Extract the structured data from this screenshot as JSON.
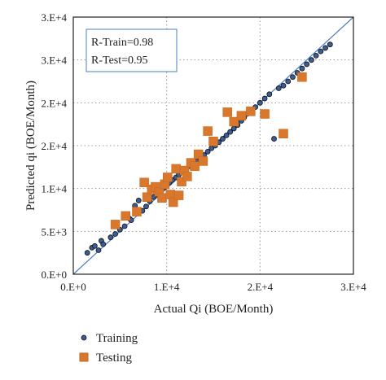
{
  "chart_data": {
    "type": "scatter",
    "xlabel": "Actual Qi (BOE/Month)",
    "ylabel": "Predicted qi (BOE/Month)",
    "xlim": [
      0,
      30000
    ],
    "ylim": [
      0,
      30000
    ],
    "x_ticks": [
      "0.E+0",
      "1.E+4",
      "2.E+4",
      "3.E+4"
    ],
    "y_ticks": [
      "0.E+0",
      "5.E+3",
      "1.E+4",
      "2.E+4",
      "2.E+4",
      "3.E+4",
      "3.E+4"
    ],
    "grid": "dotted",
    "legend_position": "bottom-left",
    "stats": [
      "R-Train=0.98",
      "R-Test=0.95"
    ],
    "fit_line": {
      "x": [
        0,
        30000
      ],
      "y": [
        0,
        30000
      ],
      "color": "#4a7fc4"
    },
    "series": [
      {
        "name": "Training",
        "marker": "circle",
        "fill": "#3b5d93",
        "stroke": "#111111",
        "x": [
          1500,
          2000,
          2300,
          2700,
          3000,
          3200,
          4000,
          4500,
          5000,
          5500,
          6000,
          6200,
          6600,
          7000,
          7400,
          7800,
          8200,
          8600,
          9000,
          9300,
          9700,
          10000,
          10300,
          10600,
          11000,
          11300,
          11600,
          12000,
          12400,
          12800,
          13200,
          13600,
          14000,
          14400,
          14800,
          15200,
          15600,
          16000,
          16400,
          16800,
          17200,
          17600,
          18000,
          18300,
          18600,
          19000,
          19500,
          20000,
          20500,
          21000,
          21500,
          22000,
          22500,
          23000,
          23500,
          24000,
          24500,
          25000,
          25500,
          26000,
          26500,
          27000,
          27500
        ],
        "y": [
          2500,
          3100,
          3300,
          2800,
          3900,
          3500,
          4300,
          4700,
          5200,
          5600,
          6500,
          6300,
          8000,
          8600,
          7400,
          7900,
          8500,
          9000,
          9300,
          9700,
          10100,
          10400,
          10700,
          11000,
          11300,
          11600,
          11900,
          12300,
          12600,
          12900,
          13200,
          13500,
          13900,
          14300,
          14700,
          15000,
          15400,
          15800,
          16200,
          16600,
          17000,
          17400,
          17900,
          18300,
          18700,
          19100,
          19500,
          20000,
          20500,
          21000,
          15800,
          21700,
          22000,
          22500,
          23000,
          23500,
          24000,
          24500,
          25000,
          25500,
          26000,
          26400,
          26800
        ]
      },
      {
        "name": "Testing",
        "marker": "square",
        "fill": "#d9782d",
        "stroke": "#c2661e",
        "x": [
          4500,
          5600,
          6800,
          7600,
          7900,
          8400,
          8800,
          9200,
          9500,
          9800,
          10100,
          10400,
          10700,
          11000,
          11300,
          11600,
          11900,
          12200,
          12600,
          13000,
          13400,
          13900,
          14400,
          15000,
          16500,
          17200,
          18000,
          19000,
          20500,
          22500,
          24500
        ],
        "y": [
          5800,
          6800,
          7300,
          10700,
          9000,
          9900,
          10200,
          9600,
          8900,
          10500,
          11300,
          9300,
          8400,
          12300,
          9200,
          10800,
          12100,
          11400,
          13000,
          12600,
          14000,
          13200,
          16700,
          15500,
          18900,
          17800,
          18500,
          19000,
          18700,
          16400,
          23000
        ]
      }
    ]
  }
}
